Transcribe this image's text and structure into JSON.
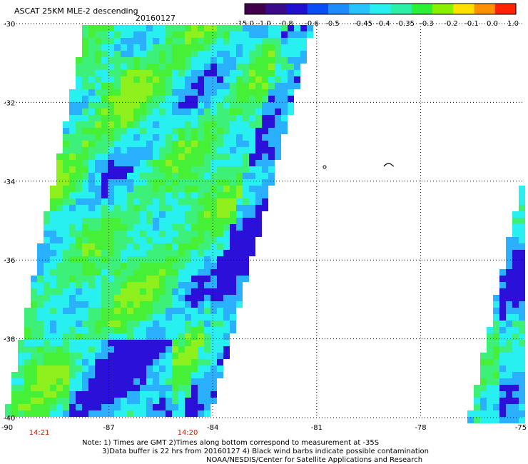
{
  "header": {
    "title": "ASCAT 25KM MLE-2 descending",
    "date": "20160127"
  },
  "colorbar": {
    "labels": [
      "-15.0",
      "-1.0",
      "-0.8",
      "-0.6",
      "-0.5",
      "-0.45",
      "-0.4",
      "-0.35",
      "-0.3",
      "-0.2",
      "-0.1",
      "0.0",
      "1.0"
    ],
    "colors": [
      "#40004a",
      "#3a0a8a",
      "#1f10cf",
      "#0a4cf5",
      "#1e8cff",
      "#27c2ff",
      "#28f0f0",
      "#2cf0a8",
      "#2cf036",
      "#88f000",
      "#ffe000",
      "#ff9000",
      "#ff2200"
    ]
  },
  "map": {
    "lat_labels": [
      "-30",
      "-32",
      "-34",
      "-36",
      "-38",
      "-40"
    ],
    "lon_labels": [
      "-90",
      "-87",
      "-84",
      "-81",
      "-78",
      "-75"
    ],
    "time_labels": [
      "14:21",
      "14:20"
    ],
    "time_color": "#cc1a00",
    "swath_palette": [
      "#2a10d8",
      "#2bb0ff",
      "#28f0f0",
      "#3df07a",
      "#46f036",
      "#8ef01c"
    ]
  },
  "notes": [
    "Note: 1) Times are GMT 2)Times along bottom correspond to measurement at -35S",
    "3)Data buffer is 22 hrs from 20160127 4) Black wind barbs indicate possible contamination",
    "NOAA/NESDIS/Center for Satellite Applications and Research"
  ]
}
